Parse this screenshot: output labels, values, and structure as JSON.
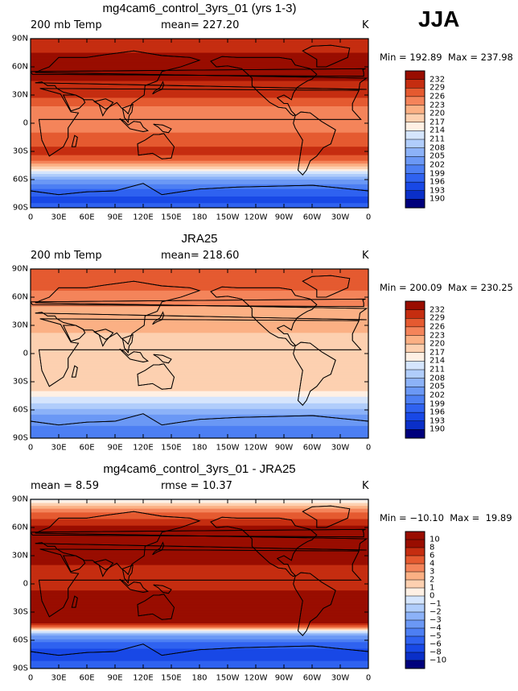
{
  "season": "JJA",
  "panels": [
    {
      "title": "mg4cam6_control_3yrs_01 (yrs 1-3)",
      "left_label": "200 mb Temp",
      "mid_label": "mean= 227.20",
      "unit": "K",
      "minmax": "Min = 192.89  Max = 237.98"
    },
    {
      "title": "JRA25",
      "left_label": "200 mb Temp",
      "mid_label": "mean= 218.60",
      "unit": "K",
      "minmax": "Min = 200.09  Max = 230.25"
    },
    {
      "title": "mg4cam6_control_3yrs_01 - JRA25",
      "left_label": "mean =    8.59",
      "mid_label": "rmse =   10.37",
      "unit": "K",
      "minmax": "Min = −10.10  Max =  19.89"
    }
  ],
  "chart_data": [
    {
      "type": "heatmap",
      "title": "mg4cam6_control_3yrs_01 (yrs 1-3)",
      "variable": "200 mb Temp",
      "unit": "K",
      "mean": 227.2,
      "min": 192.89,
      "max": 237.98,
      "lat_ticks": [
        "90N",
        "60N",
        "30N",
        "0",
        "30S",
        "60S",
        "90S"
      ],
      "lon_ticks": [
        "0",
        "30E",
        "60E",
        "90E",
        "120E",
        "150E",
        "180",
        "150W",
        "120W",
        "90W",
        "60W",
        "30W",
        "0"
      ],
      "levels": [
        190,
        193,
        196,
        199,
        202,
        205,
        208,
        211,
        214,
        217,
        220,
        223,
        226,
        229,
        232
      ],
      "colors": [
        "#00007c",
        "#0a2fc8",
        "#1848e6",
        "#2f62f0",
        "#4d7ff3",
        "#6b98f5",
        "#8cb2f8",
        "#b0cdfb",
        "#d5e5fd",
        "#fff0e4",
        "#fdd0b0",
        "#fbb084",
        "#f4845a",
        "#e55a30",
        "#c52d10",
        "#990d00"
      ],
      "lat_profile": [
        {
          "lat": 90,
          "value": 231
        },
        {
          "lat": 75,
          "value": 232
        },
        {
          "lat": 60,
          "value": 233
        },
        {
          "lat": 45,
          "value": 232
        },
        {
          "lat": 30,
          "value": 230
        },
        {
          "lat": 15,
          "value": 225
        },
        {
          "lat": 0,
          "value": 224
        },
        {
          "lat": -15,
          "value": 227
        },
        {
          "lat": -30,
          "value": 230
        },
        {
          "lat": -38,
          "value": 228
        },
        {
          "lat": -45,
          "value": 221
        },
        {
          "lat": -52,
          "value": 213
        },
        {
          "lat": -60,
          "value": 205
        },
        {
          "lat": -70,
          "value": 199
        },
        {
          "lat": -80,
          "value": 195
        },
        {
          "lat": -90,
          "value": 197
        }
      ]
    },
    {
      "type": "heatmap",
      "title": "JRA25",
      "variable": "200 mb Temp",
      "unit": "K",
      "mean": 218.6,
      "min": 200.09,
      "max": 230.25,
      "lat_ticks": [
        "90N",
        "60N",
        "30N",
        "0",
        "30S",
        "60S",
        "90S"
      ],
      "lon_ticks": [
        "0",
        "30E",
        "60E",
        "90E",
        "120E",
        "150E",
        "180",
        "150W",
        "120W",
        "90W",
        "60W",
        "30W",
        "0"
      ],
      "levels": [
        190,
        193,
        196,
        199,
        202,
        205,
        208,
        211,
        214,
        217,
        220,
        223,
        226,
        229,
        232
      ],
      "colors": [
        "#00007c",
        "#0a2fc8",
        "#1848e6",
        "#2f62f0",
        "#4d7ff3",
        "#6b98f5",
        "#8cb2f8",
        "#b0cdfb",
        "#d5e5fd",
        "#fff0e4",
        "#fdd0b0",
        "#fbb084",
        "#f4845a",
        "#e55a30",
        "#c52d10",
        "#990d00"
      ],
      "lat_profile": [
        {
          "lat": 90,
          "value": 228
        },
        {
          "lat": 75,
          "value": 227
        },
        {
          "lat": 60,
          "value": 225
        },
        {
          "lat": 45,
          "value": 222
        },
        {
          "lat": 30,
          "value": 221
        },
        {
          "lat": 15,
          "value": 219
        },
        {
          "lat": 0,
          "value": 218
        },
        {
          "lat": -15,
          "value": 219
        },
        {
          "lat": -30,
          "value": 219
        },
        {
          "lat": -40,
          "value": 217
        },
        {
          "lat": -48,
          "value": 213
        },
        {
          "lat": -55,
          "value": 210
        },
        {
          "lat": -62,
          "value": 206
        },
        {
          "lat": -72,
          "value": 203
        },
        {
          "lat": -82,
          "value": 201
        },
        {
          "lat": -90,
          "value": 202
        }
      ]
    },
    {
      "type": "heatmap",
      "title": "mg4cam6_control_3yrs_01 - JRA25",
      "unit": "K",
      "mean": 8.59,
      "rmse": 10.37,
      "min": -10.1,
      "max": 19.89,
      "lat_ticks": [
        "90N",
        "60N",
        "30N",
        "0",
        "30S",
        "60S",
        "90S"
      ],
      "lon_ticks": [
        "0",
        "30E",
        "60E",
        "90E",
        "120E",
        "150E",
        "180",
        "150W",
        "120W",
        "90W",
        "60W",
        "30W",
        "0"
      ],
      "levels": [
        -10,
        -8,
        -6,
        -5,
        -4,
        -3,
        -2,
        -1,
        0,
        1,
        2,
        3,
        4,
        6,
        8,
        10
      ],
      "colors": [
        "#00007c",
        "#0a2fc8",
        "#1848e6",
        "#2f62f0",
        "#4d7ff3",
        "#6b98f5",
        "#8cb2f8",
        "#b0cdfb",
        "#d5e5fd",
        "#fff0e4",
        "#fdd0b0",
        "#fbb084",
        "#f4845a",
        "#e55a30",
        "#c52d10",
        "#990d00",
        "#990d00"
      ],
      "lat_profile": [
        {
          "lat": 90,
          "value": -0.5
        },
        {
          "lat": 84,
          "value": 1.5
        },
        {
          "lat": 78,
          "value": 3.5
        },
        {
          "lat": 72,
          "value": 5
        },
        {
          "lat": 66,
          "value": 7
        },
        {
          "lat": 58,
          "value": 9
        },
        {
          "lat": 45,
          "value": 11
        },
        {
          "lat": 30,
          "value": 10
        },
        {
          "lat": 15,
          "value": 7
        },
        {
          "lat": 0,
          "value": 7
        },
        {
          "lat": -15,
          "value": 9
        },
        {
          "lat": -30,
          "value": 11
        },
        {
          "lat": -40,
          "value": 10
        },
        {
          "lat": -45,
          "value": 5
        },
        {
          "lat": -50,
          "value": 0
        },
        {
          "lat": -55,
          "value": -3
        },
        {
          "lat": -62,
          "value": -5
        },
        {
          "lat": -75,
          "value": -7
        },
        {
          "lat": -90,
          "value": -5
        }
      ]
    }
  ]
}
